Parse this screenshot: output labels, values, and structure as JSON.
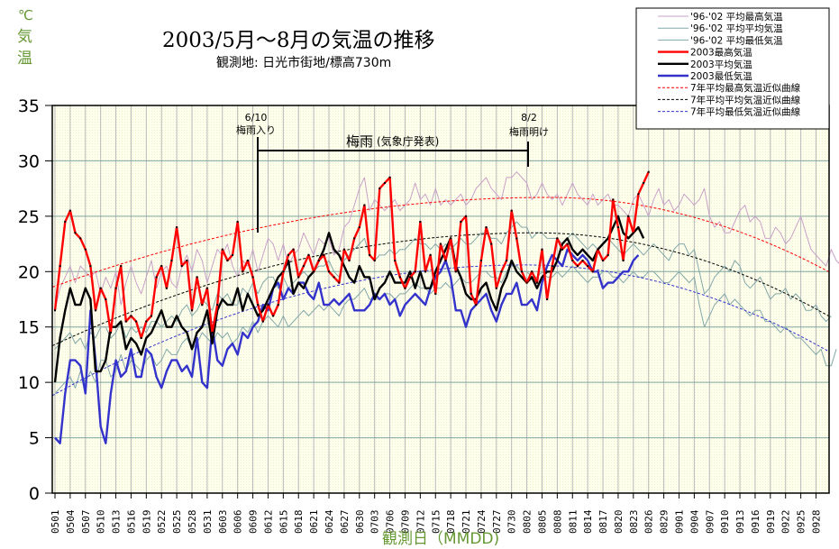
{
  "chart_data": {
    "type": "line",
    "title": "2003/5月～8月の気温の推移",
    "subtitle": "観測地: 日光市街地/標高730m",
    "ylabel": "℃ 気温",
    "ylabel_chars": [
      "℃",
      "気",
      "温"
    ],
    "xlabel": "観測日（MMDD)",
    "ylim": [
      0,
      35
    ],
    "yticks": [
      0,
      5,
      10,
      15,
      20,
      25,
      30,
      35
    ],
    "x_start": "0501",
    "x_days": 153,
    "xtick_every_days": 3,
    "xtick_labels": [
      "0501",
      "0504",
      "0507",
      "0510",
      "0513",
      "0516",
      "0519",
      "0522",
      "0525",
      "0528",
      "0531",
      "0603",
      "0606",
      "0609",
      "0612",
      "0615",
      "0618",
      "0621",
      "0624",
      "0627",
      "0630",
      "0703",
      "0706",
      "0709",
      "0712",
      "0715",
      "0718",
      "0721",
      "0724",
      "0727",
      "0730",
      "0802",
      "0805",
      "0808",
      "0811",
      "0814",
      "0817",
      "0820",
      "0823",
      "0826",
      "0829",
      "0901",
      "0904",
      "0907",
      "0910",
      "0913",
      "0916",
      "0919",
      "0922",
      "0925",
      "0928"
    ],
    "grid": true,
    "legend_position": "top-right",
    "annotations": [
      {
        "date_index": 40,
        "line1": "6/10",
        "line2": "梅雨入り"
      },
      {
        "date_index": 93,
        "line1": "8/2",
        "line2": "梅雨明け"
      },
      {
        "label_main": "梅雨",
        "label_sub": "(気象庁発表)"
      }
    ],
    "series": [
      {
        "name": "'96-'02 平均最高気温",
        "color": "#C8A0C8",
        "style": "thin",
        "values": [
          16.5,
          18.5,
          19.5,
          20.5,
          19,
          20.5,
          20,
          19.5,
          20,
          18,
          19.5,
          18.5,
          20,
          17,
          19,
          20.5,
          19,
          18,
          19.5,
          21,
          18.5,
          20,
          20.5,
          19,
          18.5,
          20.5,
          21.5,
          20,
          22,
          21,
          19,
          20.5,
          22,
          21.5,
          22.5,
          20.5,
          19.5,
          21,
          20.5,
          22,
          20,
          21.5,
          23,
          22.5,
          21,
          22.5,
          20.5,
          21.5,
          22,
          23.5,
          22.5,
          21.5,
          23,
          22.5,
          23,
          21.5,
          22,
          24,
          24.5,
          26,
          27.5,
          28.5,
          25.5,
          26.5,
          26,
          25.5,
          26,
          26.5,
          25.5,
          26,
          26.5,
          28,
          26.5,
          27,
          26,
          27.5,
          26,
          26.5,
          26,
          26.5,
          27,
          26,
          26.5,
          27.5,
          28,
          28.5,
          27.5,
          27,
          26.5,
          28.5,
          28.5,
          29,
          28.5,
          28,
          26.5,
          27,
          28,
          27,
          26.5,
          27,
          26,
          27,
          28,
          27,
          26.5,
          26,
          27,
          26,
          26.5,
          27,
          26,
          26,
          25.5,
          25,
          26.5,
          27,
          26,
          25,
          26.5,
          27.5,
          26,
          26.5,
          25.5,
          26,
          27,
          26.5,
          26,
          26.5,
          27.5,
          25,
          24,
          24.5,
          23.5,
          23.5,
          24.5,
          25.5,
          26,
          24.5,
          25,
          24.5,
          23,
          23,
          24,
          23.5,
          22.5,
          23,
          24,
          25,
          23.5,
          22,
          21.5,
          21,
          20.5,
          22,
          21,
          20.5,
          21.5,
          20
        ]
      },
      {
        "name": "'96-'02 平均平均気温",
        "color": "#80A8A8",
        "style": "thin",
        "values": [
          13,
          13.5,
          14,
          14.5,
          13.5,
          14,
          13,
          14.5,
          14,
          15,
          15,
          14,
          14.5,
          15.5,
          14,
          15,
          14.5,
          15,
          14.5,
          15.5,
          15.5,
          15,
          15.5,
          16,
          15.5,
          16.5,
          17,
          16,
          16.5,
          17.5,
          17,
          16.5,
          18,
          17.5,
          18,
          17,
          17,
          18.5,
          18,
          19,
          18,
          19,
          19.5,
          19.5,
          18.5,
          19.5,
          18.5,
          19,
          19.5,
          20,
          19.5,
          20,
          20.5,
          20.5,
          21,
          20,
          19.5,
          21,
          21.5,
          22,
          22.5,
          23,
          21.5,
          21,
          21.5,
          21.5,
          22,
          21.5,
          22,
          22,
          22.5,
          23,
          22.5,
          22.5,
          22,
          22.5,
          22,
          22.5,
          22,
          22.5,
          23,
          22.5,
          22.5,
          23,
          23.5,
          23.5,
          23,
          23,
          22.5,
          23.5,
          24,
          24.5,
          24,
          24,
          23,
          23.5,
          23.5,
          23,
          23,
          23,
          22.5,
          23,
          23.5,
          23,
          22.5,
          22,
          22.5,
          22,
          22.5,
          23,
          22.5,
          22,
          21.5,
          22,
          22.5,
          22,
          21.5,
          22,
          22.5,
          22,
          21.5,
          21,
          22,
          22.5,
          22.5,
          21.5,
          22,
          20,
          18,
          18.5,
          19.5,
          20,
          20.5,
          20,
          21,
          20.5,
          19,
          18.5,
          19,
          19.5,
          18.5,
          17.5,
          18,
          18,
          18.5,
          17.5,
          18,
          17.5,
          16.5,
          16.5,
          17,
          16,
          15.5,
          16
        ]
      },
      {
        "name": "'96-'02 平均最低気温",
        "color": "#80A8A8",
        "style": "thin",
        "values": [
          9,
          9.5,
          10,
          10.5,
          9.5,
          11,
          10,
          11,
          10,
          12,
          12,
          10.5,
          11,
          12.5,
          11,
          12,
          11.5,
          11,
          12,
          12.5,
          11.5,
          12,
          13,
          12.5,
          12.5,
          13.5,
          14,
          13,
          13.5,
          14.5,
          14,
          13.5,
          14.5,
          14,
          14.5,
          13.5,
          14,
          15,
          14.5,
          15.5,
          14.5,
          15.5,
          16,
          15.5,
          15,
          16,
          15,
          15.5,
          16,
          16.5,
          16,
          16.5,
          17,
          16.5,
          17,
          16.5,
          16,
          17,
          17.5,
          17.5,
          18,
          18.5,
          17.5,
          17.5,
          17.5,
          18,
          18,
          17.5,
          18,
          18,
          18.5,
          19,
          18.5,
          18.5,
          18,
          18.5,
          18.5,
          19,
          18.5,
          19,
          19.5,
          19,
          19,
          19.5,
          20,
          20,
          19.5,
          19.5,
          19,
          20,
          20.5,
          20.5,
          20,
          20,
          19.5,
          19.5,
          20,
          19.5,
          19.5,
          20,
          19.5,
          20,
          20.5,
          20,
          19.5,
          19,
          19.5,
          19.5,
          20,
          20,
          19.5,
          19.5,
          19,
          19.5,
          20,
          19.5,
          19.5,
          20,
          20,
          19.5,
          19,
          19,
          19.5,
          20,
          19.5,
          19,
          19.5,
          17,
          15,
          16,
          17,
          17.5,
          18,
          17,
          17.5,
          17,
          16.5,
          16,
          16.5,
          16.5,
          15.5,
          15.5,
          15,
          14.5,
          15,
          14.5,
          14,
          14,
          13.5,
          13,
          12.5,
          13,
          11.5,
          11.5,
          13
        ]
      },
      {
        "name": "2003最高気温",
        "color": "#FF0000",
        "style": "bold-marker",
        "values": [
          16.5,
          20.5,
          24.5,
          25.5,
          23.5,
          23,
          22,
          20.5,
          16.5,
          18.5,
          17.5,
          14.5,
          18.5,
          20.5,
          15.5,
          16,
          15.5,
          14,
          15.5,
          16,
          19.5,
          20.5,
          18.5,
          21,
          24,
          20.5,
          21,
          16.5,
          19.5,
          17,
          18.5,
          14.5,
          17,
          22,
          21,
          21.5,
          24.5,
          20,
          21,
          19.5,
          17,
          15.5,
          17,
          16,
          17,
          20,
          21.5,
          22,
          19.5,
          20.5,
          21.5,
          20,
          21,
          21.5,
          20,
          19.5,
          19,
          22,
          21,
          23,
          24,
          26,
          21.5,
          21,
          27.5,
          28,
          28.5,
          21,
          19.5,
          18.5,
          19.5,
          20,
          24.5,
          20,
          21.5,
          18,
          22.5,
          21,
          23,
          20,
          24.5,
          25,
          18,
          17,
          21,
          24,
          22.5,
          18.5,
          20,
          21,
          25.5,
          23,
          20,
          19,
          20,
          19,
          22,
          17.5,
          20.5,
          23,
          22,
          22.5,
          21,
          20.5,
          21,
          20.5,
          20,
          22,
          21,
          21.5,
          26.5,
          24,
          21,
          25,
          23.5,
          27,
          28,
          29
        ]
      },
      {
        "name": "2003平均気温",
        "color": "#000000",
        "style": "bold",
        "values": [
          10,
          14,
          16.5,
          18.5,
          17,
          17,
          18.5,
          17.5,
          11,
          11,
          12,
          15,
          15,
          15.5,
          13,
          14,
          13.5,
          12.5,
          14,
          14.5,
          15.5,
          16.5,
          15,
          15,
          16,
          15,
          14.5,
          13,
          14.5,
          15,
          16.5,
          13.5,
          16.5,
          17.5,
          17,
          17,
          18.5,
          16.5,
          18,
          17,
          16,
          16.5,
          17.5,
          18.5,
          19.5,
          20,
          21,
          18,
          19,
          18.5,
          19.5,
          20,
          21,
          22,
          23.5,
          22,
          21.5,
          20.5,
          19.5,
          19,
          20.5,
          19.5,
          19.5,
          17.5,
          18.5,
          19,
          20,
          19,
          19,
          19,
          20,
          18.5,
          20,
          18.5,
          18.5,
          20,
          21,
          22,
          23,
          20.5,
          19.5,
          18,
          17.5,
          17.5,
          18.5,
          19,
          17.5,
          16.5,
          18.5,
          19.5,
          21,
          20,
          19.5,
          19,
          19.5,
          18.5,
          19.5,
          20,
          20,
          21,
          22.5,
          23,
          22,
          21.5,
          22,
          21.5,
          21,
          22,
          22.5,
          23,
          24,
          25,
          23.5,
          23,
          23.5,
          24,
          23
        ]
      },
      {
        "name": "2003最低気温",
        "color": "#3333CC",
        "style": "bold",
        "values": [
          5,
          4.5,
          9,
          12,
          12,
          11.5,
          9,
          16.5,
          12,
          6,
          4.5,
          9,
          12,
          10.5,
          11,
          13,
          10.5,
          10.5,
          13,
          12.5,
          10.5,
          9.5,
          11,
          12,
          12,
          11,
          11.5,
          10.5,
          14,
          10,
          9.5,
          15,
          12,
          11.5,
          13,
          13.5,
          12.5,
          14.5,
          14,
          15,
          15.5,
          17,
          16.5,
          18.5,
          19,
          17.5,
          18.5,
          18,
          19,
          19,
          18,
          17.5,
          19,
          17,
          17,
          17.5,
          17,
          17.5,
          18,
          16.5,
          16.5,
          16.5,
          17,
          18,
          17.5,
          18,
          17,
          17.5,
          16,
          17,
          17.5,
          18,
          17.5,
          17,
          18.5,
          19.5,
          20,
          21,
          19.5,
          16.5,
          16.5,
          15,
          16.5,
          17,
          17.5,
          18,
          16.5,
          15.5,
          17,
          18,
          18,
          19,
          17,
          17,
          17.5,
          16.5,
          19,
          20.5,
          21.5,
          21,
          20.5,
          22,
          21.5,
          21,
          21.5,
          21,
          20,
          20,
          18.5,
          19,
          19,
          19.5,
          20,
          20,
          21,
          21.5
        ]
      },
      {
        "name": "7年平均最高気温近似曲線",
        "color": "#FF0000",
        "style": "dashed",
        "quadratic": {
          "peak_day_index": 98,
          "peak_value": 26.7,
          "start_value": 18.6,
          "end_value": 20.0
        }
      },
      {
        "name": "7年平均平均気温近似曲線",
        "color": "#000000",
        "style": "dashed",
        "quadratic": {
          "peak_day_index": 95,
          "peak_value": 23.5,
          "start_value": 13.3,
          "end_value": 16.0
        }
      },
      {
        "name": "7年平均最低気温近似曲線",
        "color": "#3333CC",
        "style": "dashed",
        "quadratic": {
          "peak_day_index": 93,
          "peak_value": 20.6,
          "start_value": 8.8,
          "end_value": 12.8
        }
      }
    ]
  },
  "colors": {
    "plot_background": "#FFFFE6",
    "vgrid": "#B8B8B8",
    "hgrid": "#7FA8A0",
    "title": "#000000",
    "axis_label": "#669933"
  }
}
